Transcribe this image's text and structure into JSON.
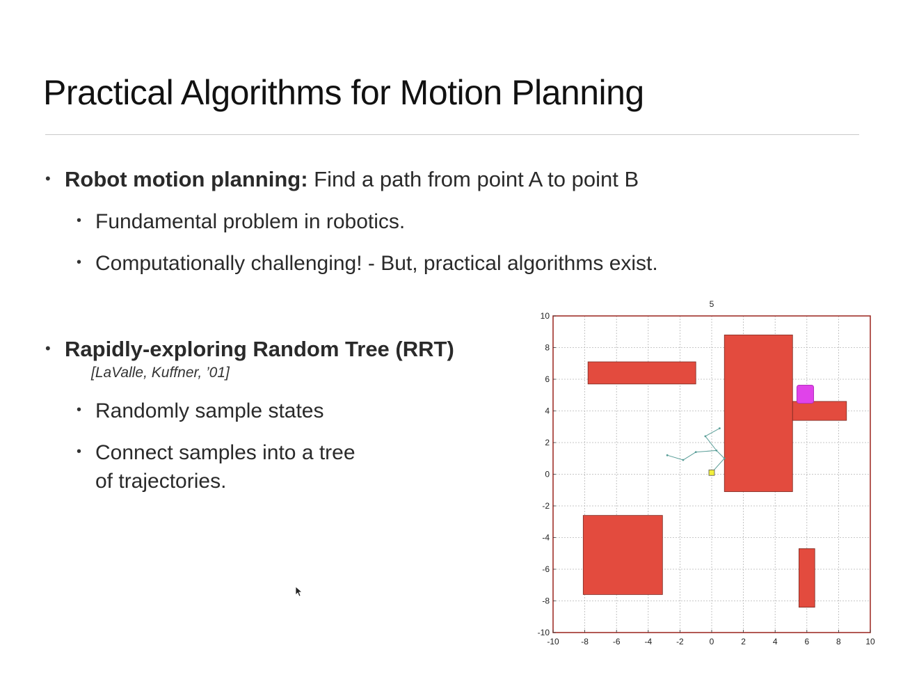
{
  "slide": {
    "title": "Practical Algorithms for Motion Planning",
    "bullets": [
      {
        "bold": "Robot motion planning:",
        "text": " Find a path from point A to point B"
      },
      {
        "text": "Fundamental problem in robotics."
      },
      {
        "text": "Computationally challenging! - But, practical algorithms exist."
      },
      {
        "bold": "Rapidly-exploring Random Tree (RRT)"
      },
      {
        "text": "Randomly sample states"
      },
      {
        "text": "Connect samples into a tree"
      },
      {
        "text": "of trajectories."
      }
    ],
    "citation": "[LaValle, Kuffner, ’01]",
    "bullet_glyph": "•"
  },
  "chart_data": {
    "type": "scatter",
    "title": "5",
    "xlim": [
      -10,
      10
    ],
    "ylim": [
      -10,
      10
    ],
    "xticks": [
      "-10",
      "-8",
      "-6",
      "-4",
      "-2",
      "0",
      "2",
      "4",
      "6",
      "8",
      "10"
    ],
    "yticks": [
      "10",
      "8",
      "6",
      "4",
      "2",
      "0",
      "-2",
      "-4",
      "-6",
      "-8",
      "-10"
    ],
    "grid": true,
    "obstacles": [
      {
        "x0": -7.8,
        "y0": 5.7,
        "x1": -1.0,
        "y1": 7.1
      },
      {
        "x0": 0.8,
        "y0": -1.1,
        "x1": 5.1,
        "y1": 8.8
      },
      {
        "x0": 5.1,
        "y0": 3.4,
        "x1": 8.5,
        "y1": 4.6
      },
      {
        "x0": -8.1,
        "y0": -7.6,
        "x1": -3.1,
        "y1": -2.6
      },
      {
        "x0": 5.5,
        "y0": -8.4,
        "x1": 6.5,
        "y1": -4.7
      }
    ],
    "start": {
      "x": 0.0,
      "y": 0.1
    },
    "goal": {
      "x": 5.9,
      "y": 5.1
    },
    "tree_edges": [
      [
        [
          0.0,
          0.1
        ],
        [
          0.8,
          1.0
        ]
      ],
      [
        [
          0.8,
          1.0
        ],
        [
          0.3,
          1.5
        ]
      ],
      [
        [
          0.3,
          1.5
        ],
        [
          -1.0,
          1.4
        ]
      ],
      [
        [
          -1.0,
          1.4
        ],
        [
          -1.8,
          0.9
        ]
      ],
      [
        [
          -1.8,
          0.9
        ],
        [
          -2.8,
          1.2
        ]
      ],
      [
        [
          0.3,
          1.5
        ],
        [
          -0.4,
          2.4
        ]
      ],
      [
        [
          -0.4,
          2.4
        ],
        [
          0.5,
          2.9
        ]
      ]
    ],
    "colors": {
      "obstacle": "#e34b3e",
      "obstacle_edge": "#7a2a22",
      "frame": "#a0302a",
      "goal": "#e043ea",
      "start": "#f2ef3c",
      "tree": "#5a9e98"
    }
  }
}
